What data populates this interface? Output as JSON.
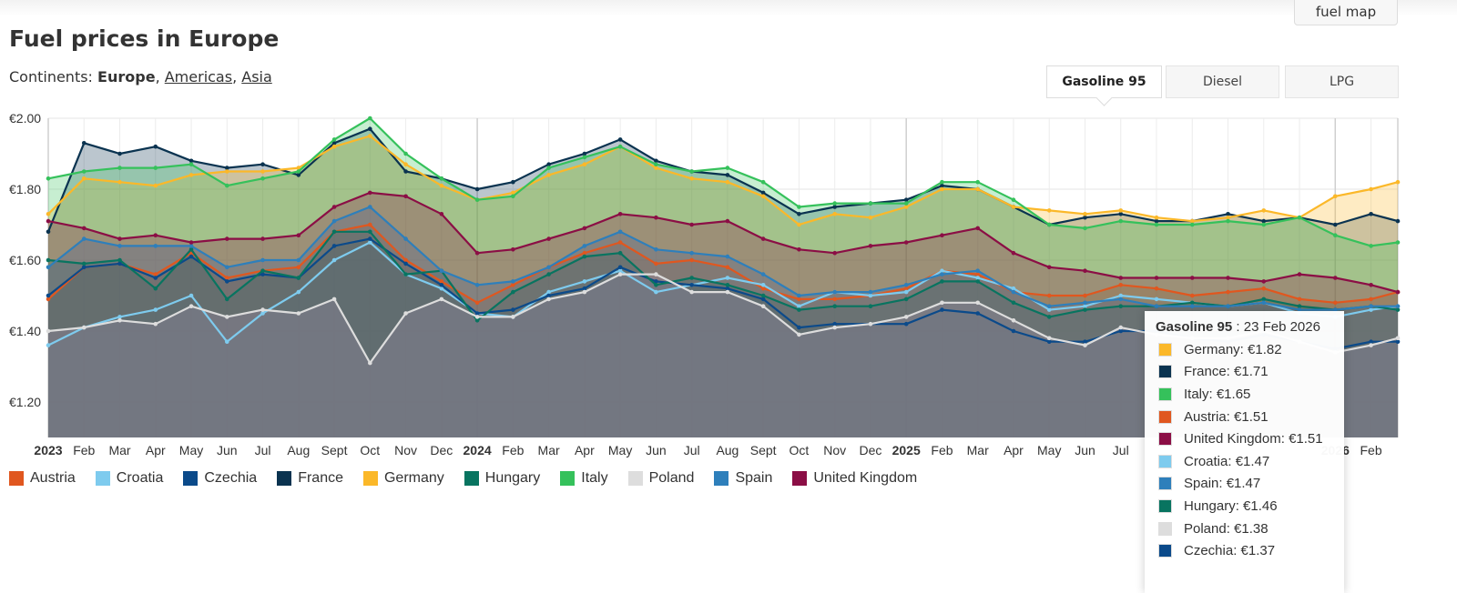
{
  "header": {
    "fuel_map_button": "fuel map",
    "title": "Fuel prices in Europe",
    "continents_label": "Continents:",
    "continents": [
      {
        "label": "Europe",
        "active": true
      },
      {
        "label": "Americas",
        "active": false
      },
      {
        "label": "Asia",
        "active": false
      }
    ]
  },
  "tabs": [
    {
      "label": "Gasoline 95",
      "active": true
    },
    {
      "label": "Diesel",
      "active": false
    },
    {
      "label": "LPG",
      "active": false
    }
  ],
  "tooltip": {
    "fuel": "Gasoline 95",
    "date": " : 23 Feb 2026",
    "rows": [
      {
        "label": "Germany: €1.82",
        "color": "#fbb829"
      },
      {
        "label": "France: €1.71",
        "color": "#0a3350"
      },
      {
        "label": "Italy: €1.65",
        "color": "#35c15b"
      },
      {
        "label": "Austria: €1.51",
        "color": "#e0571f"
      },
      {
        "label": "United Kingdom: €1.51",
        "color": "#8b0e45"
      },
      {
        "label": "Croatia: €1.47",
        "color": "#7ecbee"
      },
      {
        "label": "Spain: €1.47",
        "color": "#2e7fbb"
      },
      {
        "label": "Hungary: €1.46",
        "color": "#087460"
      },
      {
        "label": "Poland: €1.38",
        "color": "#dddddd"
      },
      {
        "label": "Czechia: €1.37",
        "color": "#0b4a8a"
      }
    ]
  },
  "chart_data": {
    "type": "area",
    "title": "Fuel prices in Europe",
    "xlabel": "",
    "ylabel": "",
    "ylim": [
      1.1,
      2.0
    ],
    "y_ticks": [
      {
        "v": 2.0,
        "label": "€2.00"
      },
      {
        "v": 1.8,
        "label": "€1.80"
      },
      {
        "v": 1.6,
        "label": "€1.60"
      },
      {
        "v": 1.4,
        "label": "€1.40"
      },
      {
        "v": 1.2,
        "label": "€1.20"
      }
    ],
    "x_unit": "months since Jan 2023",
    "xlim": [
      0,
      37.75
    ],
    "x": [
      0,
      1,
      2,
      3,
      4,
      5,
      6,
      7,
      8,
      9,
      10,
      11,
      12,
      13,
      14,
      15,
      16,
      17,
      18,
      19,
      20,
      21,
      22,
      23,
      24,
      25,
      26,
      27,
      28,
      29,
      30,
      31,
      32,
      33,
      34,
      35,
      36,
      37,
      37.75
    ],
    "x_ticks": [
      {
        "v": 0,
        "label": "2023",
        "bold": true
      },
      {
        "v": 1,
        "label": "Feb"
      },
      {
        "v": 2,
        "label": "Mar"
      },
      {
        "v": 3,
        "label": "Apr"
      },
      {
        "v": 4,
        "label": "May"
      },
      {
        "v": 5,
        "label": "Jun"
      },
      {
        "v": 6,
        "label": "Jul"
      },
      {
        "v": 7,
        "label": "Aug"
      },
      {
        "v": 8,
        "label": "Sept"
      },
      {
        "v": 9,
        "label": "Oct"
      },
      {
        "v": 10,
        "label": "Nov"
      },
      {
        "v": 11,
        "label": "Dec"
      },
      {
        "v": 12,
        "label": "2024",
        "bold": true
      },
      {
        "v": 13,
        "label": "Feb"
      },
      {
        "v": 14,
        "label": "Mar"
      },
      {
        "v": 15,
        "label": "Apr"
      },
      {
        "v": 16,
        "label": "May"
      },
      {
        "v": 17,
        "label": "Jun"
      },
      {
        "v": 18,
        "label": "Jul"
      },
      {
        "v": 19,
        "label": "Aug"
      },
      {
        "v": 20,
        "label": "Sept"
      },
      {
        "v": 21,
        "label": "Oct"
      },
      {
        "v": 22,
        "label": "Nov"
      },
      {
        "v": 23,
        "label": "Dec"
      },
      {
        "v": 24,
        "label": "2025",
        "bold": true
      },
      {
        "v": 25,
        "label": "Feb"
      },
      {
        "v": 26,
        "label": "Mar"
      },
      {
        "v": 27,
        "label": "Apr"
      },
      {
        "v": 28,
        "label": "May"
      },
      {
        "v": 29,
        "label": "Jun"
      },
      {
        "v": 30,
        "label": "Jul"
      },
      {
        "v": 36,
        "label": "2026",
        "bold": true
      },
      {
        "v": 37,
        "label": "Feb"
      }
    ],
    "legend_position": "bottom-left",
    "grid": true,
    "series": [
      {
        "name": "Austria",
        "color": "#e0571f",
        "values": [
          1.49,
          1.58,
          1.59,
          1.56,
          1.62,
          1.55,
          1.57,
          1.58,
          1.68,
          1.7,
          1.6,
          1.54,
          1.48,
          1.53,
          1.58,
          1.62,
          1.65,
          1.59,
          1.6,
          1.58,
          1.52,
          1.49,
          1.49,
          1.5,
          1.52,
          1.57,
          1.56,
          1.51,
          1.5,
          1.5,
          1.53,
          1.52,
          1.5,
          1.51,
          1.52,
          1.49,
          1.48,
          1.49,
          1.51
        ]
      },
      {
        "name": "Croatia",
        "color": "#7ecbee",
        "values": [
          1.36,
          1.41,
          1.44,
          1.46,
          1.5,
          1.37,
          1.45,
          1.51,
          1.6,
          1.65,
          1.56,
          1.52,
          1.45,
          1.44,
          1.51,
          1.54,
          1.57,
          1.51,
          1.53,
          1.55,
          1.53,
          1.47,
          1.51,
          1.5,
          1.51,
          1.57,
          1.55,
          1.52,
          1.46,
          1.47,
          1.5,
          1.49,
          1.48,
          1.47,
          1.48,
          1.45,
          1.44,
          1.46,
          1.47
        ]
      },
      {
        "name": "Czechia",
        "color": "#0b4a8a",
        "values": [
          1.5,
          1.58,
          1.59,
          1.55,
          1.61,
          1.54,
          1.56,
          1.55,
          1.64,
          1.66,
          1.59,
          1.53,
          1.45,
          1.46,
          1.5,
          1.52,
          1.58,
          1.54,
          1.53,
          1.52,
          1.49,
          1.41,
          1.42,
          1.42,
          1.42,
          1.46,
          1.45,
          1.4,
          1.37,
          1.37,
          1.4,
          1.4,
          1.38,
          1.37,
          1.39,
          1.37,
          1.35,
          1.37,
          1.37
        ]
      },
      {
        "name": "France",
        "color": "#0a3350",
        "values": [
          1.68,
          1.93,
          1.9,
          1.92,
          1.88,
          1.86,
          1.87,
          1.84,
          1.93,
          1.97,
          1.85,
          1.83,
          1.8,
          1.82,
          1.87,
          1.9,
          1.94,
          1.88,
          1.85,
          1.84,
          1.79,
          1.73,
          1.75,
          1.76,
          1.77,
          1.81,
          1.8,
          1.75,
          1.7,
          1.72,
          1.73,
          1.71,
          1.71,
          1.73,
          1.71,
          1.72,
          1.7,
          1.73,
          1.71
        ]
      },
      {
        "name": "Germany",
        "color": "#fbb829",
        "values": [
          1.73,
          1.83,
          1.82,
          1.81,
          1.84,
          1.85,
          1.85,
          1.86,
          1.92,
          1.95,
          1.87,
          1.81,
          1.77,
          1.79,
          1.84,
          1.87,
          1.92,
          1.86,
          1.83,
          1.82,
          1.78,
          1.7,
          1.73,
          1.72,
          1.75,
          1.8,
          1.8,
          1.75,
          1.74,
          1.73,
          1.74,
          1.72,
          1.71,
          1.72,
          1.74,
          1.72,
          1.78,
          1.8,
          1.82
        ]
      },
      {
        "name": "Hungary",
        "color": "#087460",
        "values": [
          1.6,
          1.59,
          1.6,
          1.52,
          1.63,
          1.49,
          1.57,
          1.55,
          1.68,
          1.68,
          1.56,
          1.57,
          1.43,
          1.51,
          1.56,
          1.61,
          1.62,
          1.53,
          1.55,
          1.53,
          1.5,
          1.46,
          1.47,
          1.47,
          1.49,
          1.54,
          1.54,
          1.48,
          1.44,
          1.46,
          1.47,
          1.47,
          1.48,
          1.47,
          1.49,
          1.47,
          1.46,
          1.47,
          1.46
        ]
      },
      {
        "name": "Italy",
        "color": "#35c15b",
        "values": [
          1.83,
          1.85,
          1.86,
          1.86,
          1.87,
          1.81,
          1.83,
          1.85,
          1.94,
          2.0,
          1.9,
          1.83,
          1.77,
          1.78,
          1.86,
          1.89,
          1.92,
          1.87,
          1.85,
          1.86,
          1.82,
          1.75,
          1.76,
          1.76,
          1.76,
          1.82,
          1.82,
          1.77,
          1.7,
          1.69,
          1.71,
          1.7,
          1.7,
          1.71,
          1.7,
          1.72,
          1.67,
          1.64,
          1.65
        ]
      },
      {
        "name": "Poland",
        "color": "#dddddd",
        "values": [
          1.4,
          1.41,
          1.43,
          1.42,
          1.47,
          1.44,
          1.46,
          1.45,
          1.49,
          1.31,
          1.45,
          1.49,
          1.44,
          1.44,
          1.49,
          1.51,
          1.56,
          1.56,
          1.51,
          1.51,
          1.47,
          1.39,
          1.41,
          1.42,
          1.44,
          1.48,
          1.48,
          1.43,
          1.38,
          1.36,
          1.41,
          1.39,
          1.38,
          1.38,
          1.4,
          1.37,
          1.34,
          1.36,
          1.38
        ]
      },
      {
        "name": "Spain",
        "color": "#2e7fbb",
        "values": [
          1.58,
          1.66,
          1.64,
          1.64,
          1.64,
          1.58,
          1.6,
          1.6,
          1.71,
          1.75,
          1.66,
          1.57,
          1.53,
          1.54,
          1.58,
          1.64,
          1.68,
          1.63,
          1.62,
          1.61,
          1.56,
          1.5,
          1.51,
          1.51,
          1.53,
          1.56,
          1.57,
          1.51,
          1.47,
          1.48,
          1.49,
          1.47,
          1.47,
          1.47,
          1.48,
          1.46,
          1.46,
          1.47,
          1.47
        ]
      },
      {
        "name": "United Kingdom",
        "color": "#8b0e45",
        "values": [
          1.71,
          1.69,
          1.66,
          1.67,
          1.65,
          1.66,
          1.66,
          1.67,
          1.75,
          1.79,
          1.78,
          1.73,
          1.62,
          1.63,
          1.66,
          1.69,
          1.73,
          1.72,
          1.7,
          1.71,
          1.66,
          1.63,
          1.62,
          1.64,
          1.65,
          1.67,
          1.69,
          1.62,
          1.58,
          1.57,
          1.55,
          1.55,
          1.55,
          1.55,
          1.54,
          1.56,
          1.55,
          1.53,
          1.51
        ]
      }
    ]
  }
}
